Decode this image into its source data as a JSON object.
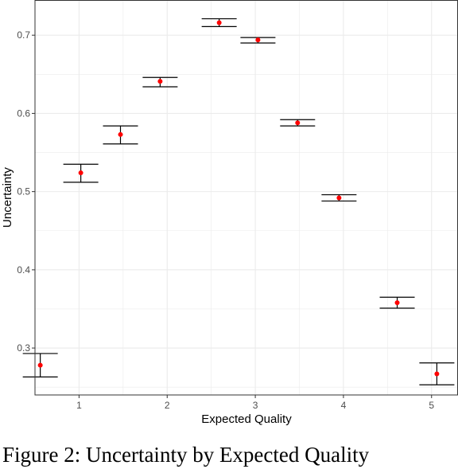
{
  "caption": "Figure 2: Uncertainty by Expected Quality",
  "colors": {
    "point": "#ff0000",
    "errorbar": "#000000",
    "grid": "#ebebeb",
    "panel_border": "#333333"
  },
  "chart_data": {
    "type": "scatter",
    "xlabel": "Expected Quality",
    "ylabel": "Uncertainty",
    "xlim": [
      0.5,
      5.3
    ],
    "ylim": [
      0.24,
      0.745
    ],
    "x_ticks": [
      1,
      2,
      3,
      4,
      5
    ],
    "y_ticks": [
      0.3,
      0.4,
      0.5,
      0.6,
      0.7
    ],
    "x_tick_labels": [
      "1",
      "2",
      "3",
      "4",
      "5"
    ],
    "y_tick_labels": [
      "0.3",
      "0.4",
      "0.5",
      "0.6",
      "0.7"
    ],
    "grid": true,
    "legend": "none",
    "points": [
      {
        "x": 0.56,
        "y": 0.278,
        "ymin": 0.263,
        "ymax": 0.293
      },
      {
        "x": 1.02,
        "y": 0.524,
        "ymin": 0.512,
        "ymax": 0.535
      },
      {
        "x": 1.47,
        "y": 0.573,
        "ymin": 0.561,
        "ymax": 0.584
      },
      {
        "x": 1.92,
        "y": 0.641,
        "ymin": 0.634,
        "ymax": 0.646
      },
      {
        "x": 2.59,
        "y": 0.716,
        "ymin": 0.711,
        "ymax": 0.721
      },
      {
        "x": 3.03,
        "y": 0.694,
        "ymin": 0.69,
        "ymax": 0.697
      },
      {
        "x": 3.48,
        "y": 0.588,
        "ymin": 0.584,
        "ymax": 0.592
      },
      {
        "x": 3.95,
        "y": 0.492,
        "ymin": 0.488,
        "ymax": 0.496
      },
      {
        "x": 4.61,
        "y": 0.358,
        "ymin": 0.351,
        "ymax": 0.365
      },
      {
        "x": 5.06,
        "y": 0.267,
        "ymin": 0.253,
        "ymax": 0.281
      }
    ]
  }
}
